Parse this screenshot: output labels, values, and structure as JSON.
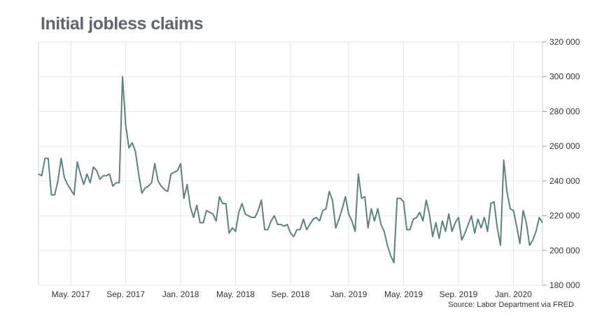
{
  "chart_data": {
    "type": "line",
    "title": "Initial jobless claims",
    "source": "Source: Labor Department via FRED",
    "xlabel": "",
    "ylabel": "",
    "ylim": [
      180000,
      320000
    ],
    "yticks": [
      180000,
      200000,
      220000,
      240000,
      260000,
      280000,
      300000,
      320000
    ],
    "ytick_labels": [
      "180 000",
      "200 000",
      "220 000",
      "240 000",
      "260 000",
      "280 000",
      "300 000",
      "320 000"
    ],
    "xtick_labels": [
      "May. 2017",
      "Sep. 2017",
      "Jan. 2018",
      "May. 2018",
      "Sep. 2018",
      "Jan. 2019",
      "May. 2019",
      "Sep. 2019",
      "Jan. 2020"
    ],
    "xtick_weeks": [
      10,
      27,
      44,
      61,
      78,
      96,
      113,
      130,
      147
    ],
    "xlim": [
      0,
      156
    ],
    "line_color": "#5f8080",
    "series": [
      {
        "name": "Initial jobless claims",
        "values": [
          244000,
          243000,
          253000,
          253000,
          232000,
          232000,
          240000,
          253000,
          242000,
          238000,
          235000,
          232000,
          251000,
          244000,
          238000,
          244000,
          239000,
          248000,
          246000,
          241000,
          243000,
          243000,
          244000,
          237000,
          239000,
          239000,
          300000,
          272000,
          259000,
          262000,
          257000,
          244000,
          233000,
          236000,
          237000,
          239000,
          250000,
          240000,
          237000,
          235000,
          234000,
          244000,
          245000,
          246000,
          250000,
          230000,
          238000,
          225000,
          219000,
          226000,
          216000,
          216000,
          223000,
          222000,
          221000,
          217000,
          231000,
          227000,
          227000,
          210000,
          213000,
          211000,
          222000,
          227000,
          221000,
          220000,
          219000,
          219000,
          223000,
          229000,
          212000,
          212000,
          217000,
          220000,
          215000,
          215000,
          214000,
          215000,
          210000,
          208000,
          212000,
          212000,
          218000,
          212000,
          215000,
          218000,
          219000,
          217000,
          223000,
          224000,
          234000,
          229000,
          213000,
          218000,
          224000,
          231000,
          221000,
          217000,
          211000,
          244000,
          230000,
          231000,
          213000,
          224000,
          217000,
          224000,
          215000,
          211000,
          203000,
          197000,
          193000,
          230000,
          230000,
          228000,
          212000,
          212000,
          218000,
          219000,
          222000,
          217000,
          229000,
          221000,
          208000,
          216000,
          207000,
          217000,
          211000,
          221000,
          211000,
          216000,
          219000,
          206000,
          210000,
          215000,
          220000,
          210000,
          218000,
          213000,
          219000,
          211000,
          227000,
          228000,
          213000,
          203000,
          252000,
          234000,
          224000,
          223000,
          214000,
          204000,
          223000,
          216000,
          203000,
          206000,
          211000,
          219000,
          216000
        ]
      }
    ]
  }
}
